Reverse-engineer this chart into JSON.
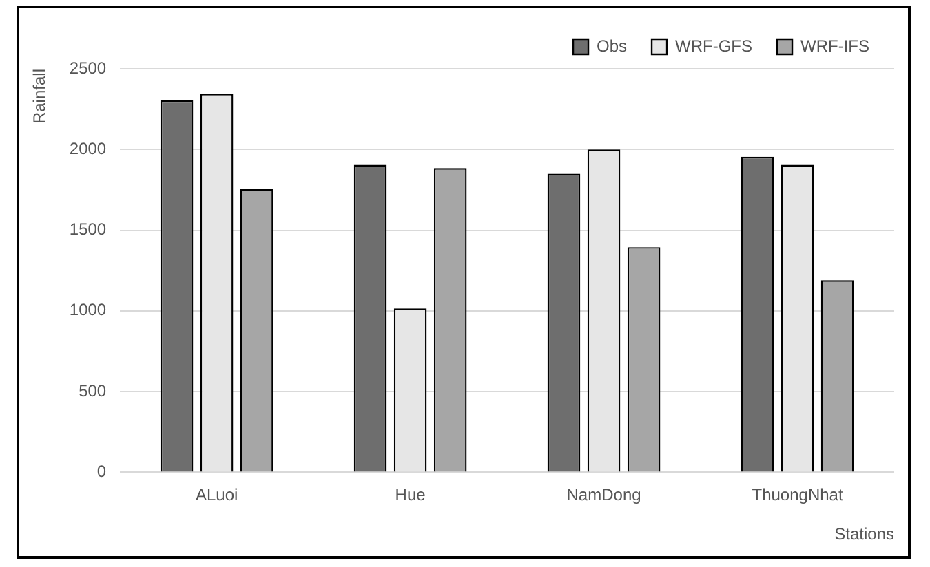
{
  "chart_data": {
    "type": "bar",
    "xlabel": "Stations",
    "ylabel": "Rainfall",
    "categories": [
      "ALuoi",
      "Hue",
      "NamDong",
      "ThuongNhat"
    ],
    "series": [
      {
        "name": "Obs",
        "color": "#6e6e6e",
        "values": [
          2305,
          1905,
          1850,
          1955
        ]
      },
      {
        "name": "WRF-GFS",
        "color": "#e6e6e6",
        "values": [
          2345,
          1015,
          2000,
          1905
        ]
      },
      {
        "name": "WRF-IFS",
        "color": "#a6a6a6",
        "values": [
          1755,
          1885,
          1395,
          1190
        ]
      }
    ],
    "ylim": [
      0,
      2500
    ],
    "yticks": [
      0,
      500,
      1000,
      1500,
      2000,
      2500
    ],
    "grid": "y",
    "legend": "top right"
  }
}
